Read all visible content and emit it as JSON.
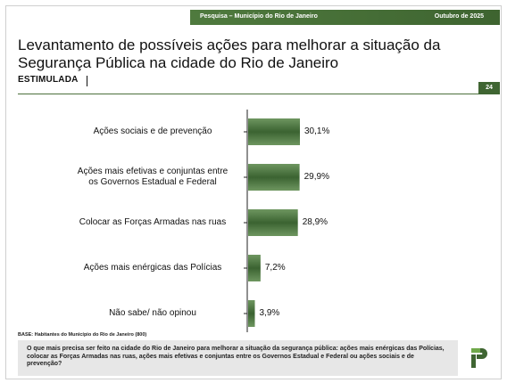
{
  "header": {
    "survey": "Pesquisa – Município do Rio de Janeiro",
    "date": "Outubro de 2025"
  },
  "title": "Levantamento de possíveis ações para melhorar a situação da Segurança Pública na cidade do Rio de Janeiro",
  "subtitle": "ESTIMULADA",
  "page_number": "24",
  "chart_data": {
    "type": "bar",
    "orientation": "horizontal",
    "categories": [
      "Ações sociais e de prevenção",
      "Ações mais efetivas e conjuntas entre os Governos Estadual e Federal",
      "Colocar as Forças Armadas nas ruas",
      "Ações mais enérgicas das Polícias",
      "Não sabe/ não opinou"
    ],
    "category_lines": [
      [
        "Ações sociais e de prevenção"
      ],
      [
        "Ações mais efetivas e conjuntas entre",
        "os Governos Estadual e Federal"
      ],
      [
        "Colocar as Forças Armadas nas ruas"
      ],
      [
        "Ações mais enérgicas das Polícias"
      ],
      [
        "Não sabe/ não opinou"
      ]
    ],
    "values": [
      30.1,
      29.9,
      28.9,
      7.2,
      3.9
    ],
    "value_labels": [
      "30,1%",
      "29,9%",
      "28,9%",
      "7,2%",
      "3,9%"
    ],
    "unit": "%",
    "xlim": [
      0,
      32
    ],
    "grid": false,
    "legend": "none",
    "colors": {
      "bar_dark": "#3b6331",
      "bar_light": "#6e9660",
      "axis": "#222222"
    }
  },
  "base_note": "BASE: Habitantes do Município do Rio de Janeiro (800)",
  "question": "O que mais precisa ser feito na cidade do Rio de Janeiro para melhorar a situação da segurança pública: ações mais enérgicas das Polícias, colocar as Forças Armadas nas ruas, ações mais efetivas e conjuntas entre os Governos Estadual e Federal ou ações sociais e de prevenção?",
  "colors": {
    "brand_green": "#3f6532",
    "question_bg": "#e7e7e7"
  },
  "logo_icon": "p-logo-icon"
}
